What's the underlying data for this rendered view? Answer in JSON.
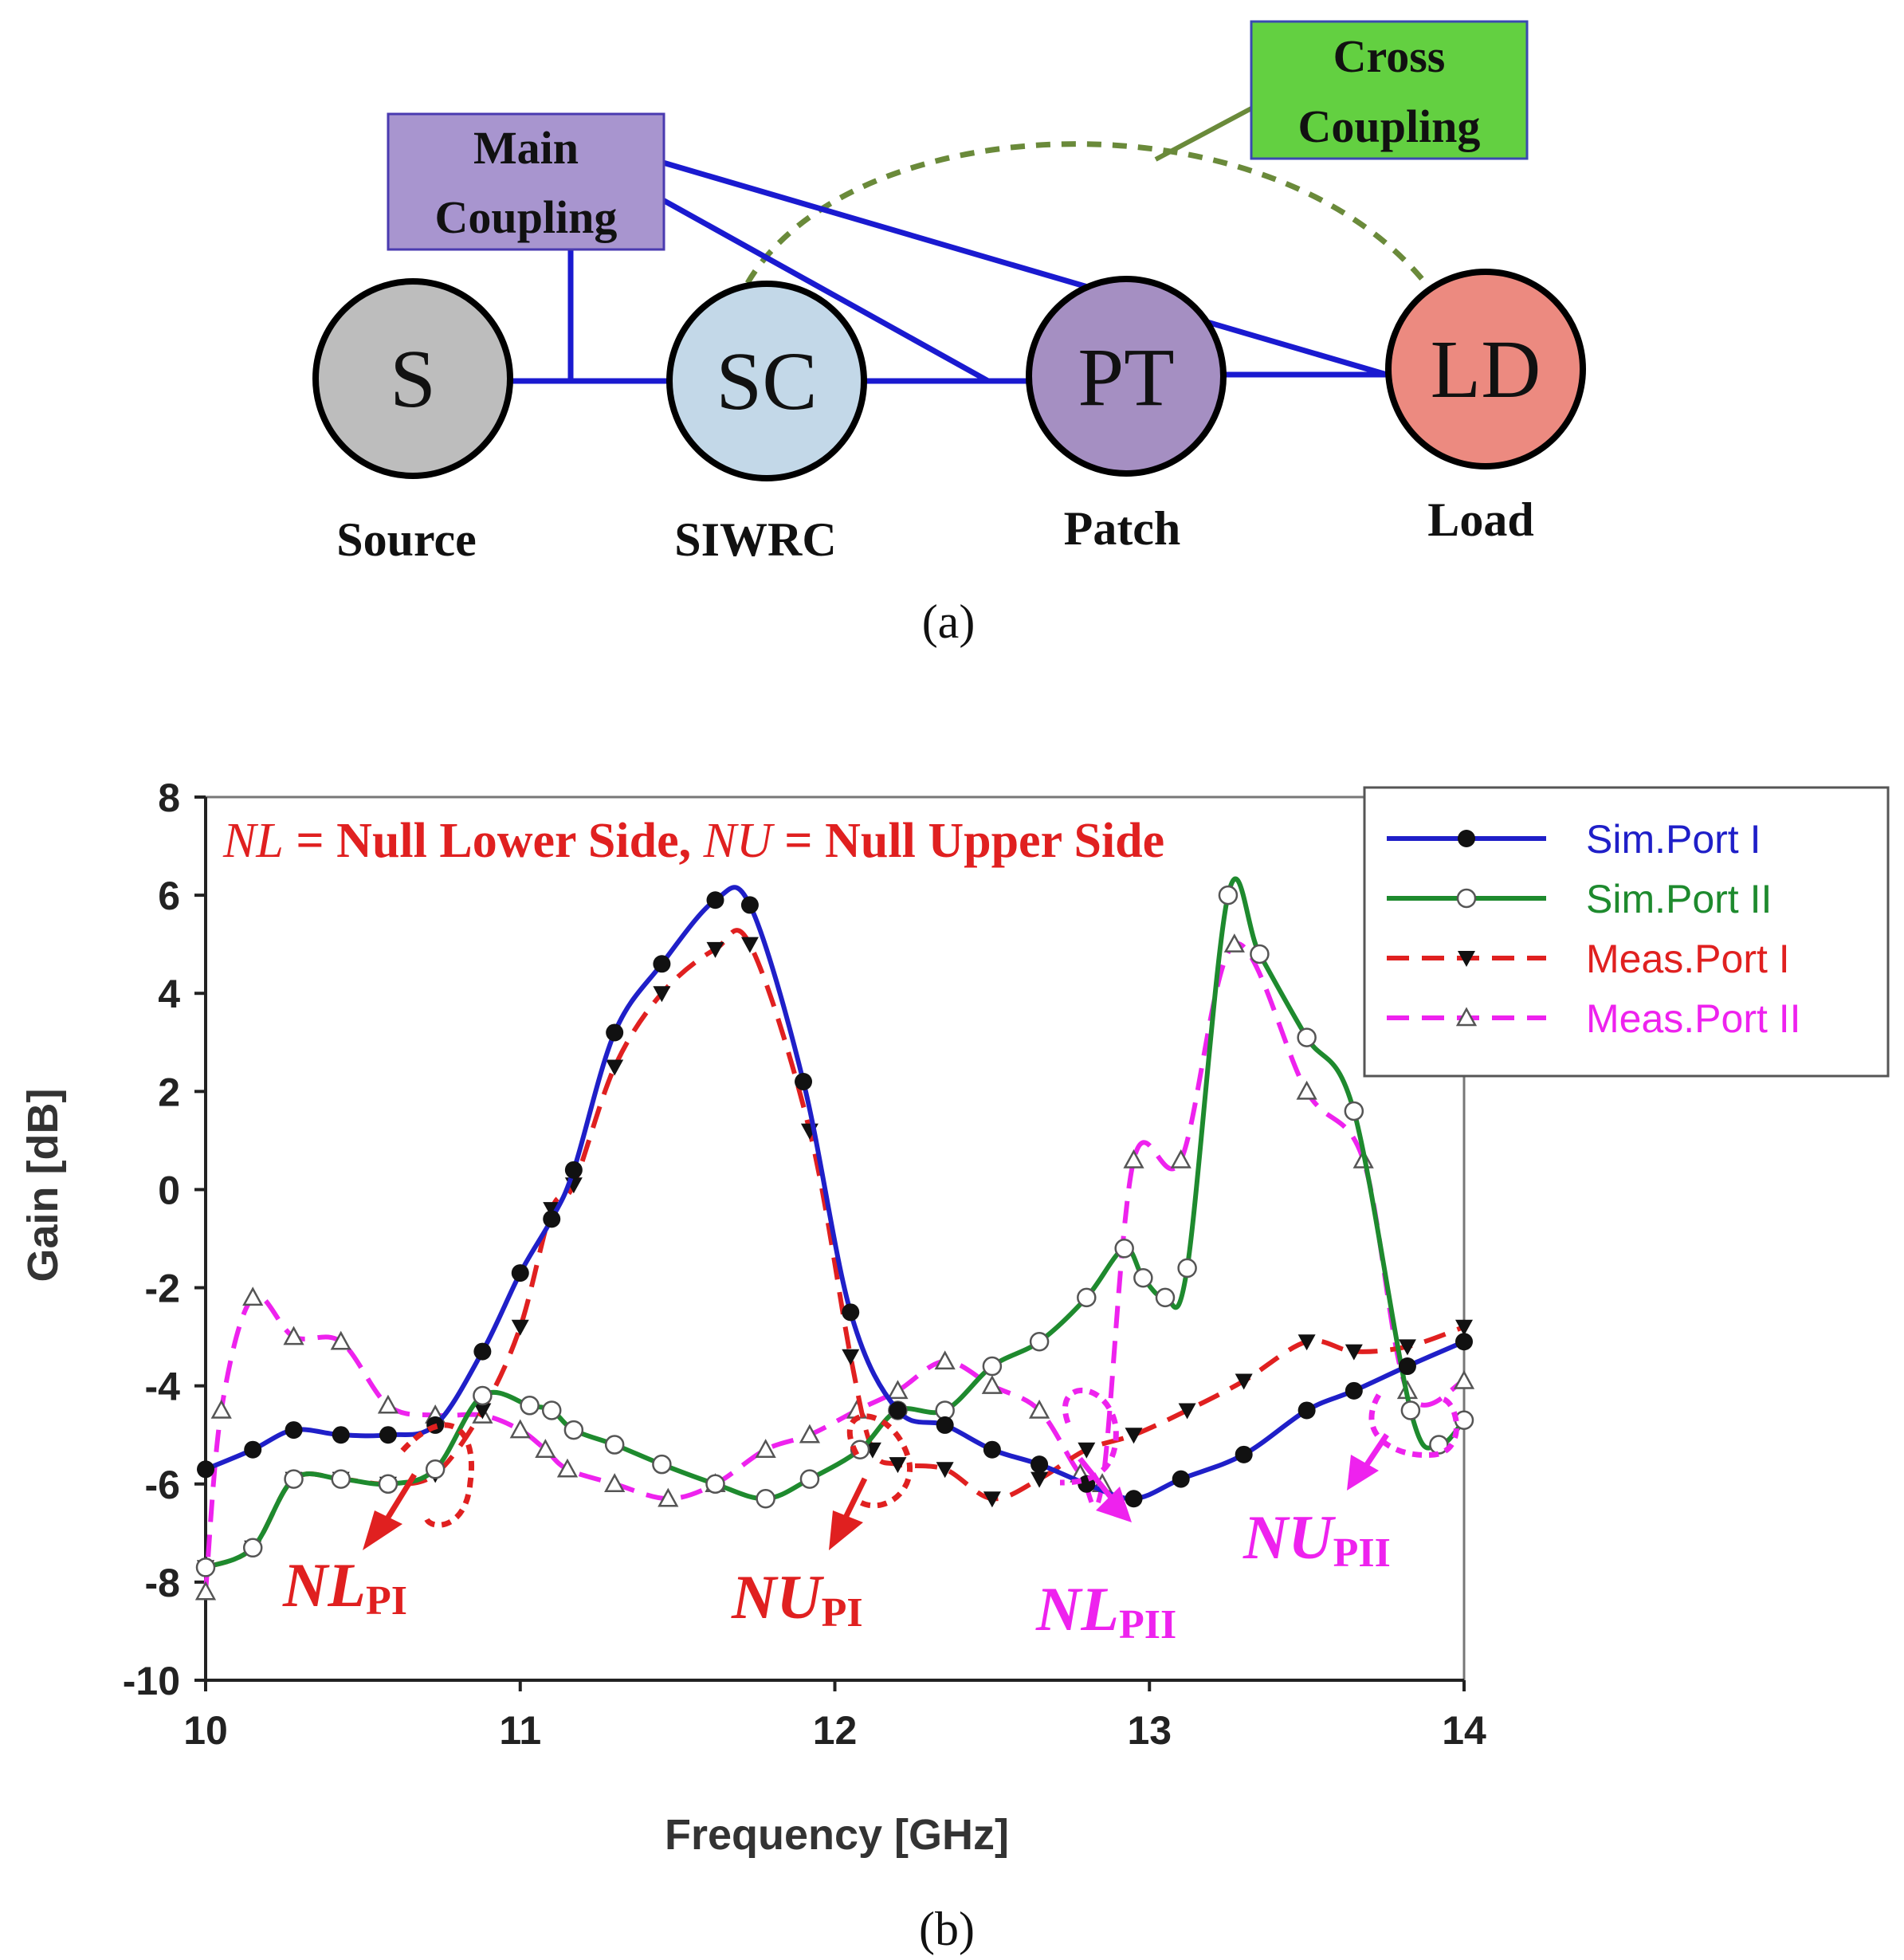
{
  "colors": {
    "sim_port_1": "#1f1fc8",
    "sim_port_2": "#1e8a2e",
    "meas_port_1": "#e02020",
    "meas_port_2": "#ee22ee",
    "coupling_line": "#1a1ad0",
    "cross_coupling": "#6a8a3a",
    "main_box_fill": "#a895cf",
    "cross_box_fill": "#63d041"
  },
  "diagram": {
    "main_coupling_label": [
      "Main",
      "Coupling"
    ],
    "cross_coupling_label": [
      "Cross",
      "Coupling"
    ],
    "nodes": [
      {
        "id": "S",
        "caption": "Source",
        "fill": "#bdbdbd"
      },
      {
        "id": "SC",
        "caption": "SIWRC",
        "fill": "#c3d8e8"
      },
      {
        "id": "PT",
        "caption": "Patch",
        "fill": "#a58fc2"
      },
      {
        "id": "LD",
        "caption": "Load",
        "fill": "#ec8a80"
      }
    ],
    "caption": "(a)"
  },
  "chart_data": {
    "type": "line",
    "title_parts": {
      "nl_symbol": "NL",
      "nl_text": " = Null Lower Side, ",
      "nu_symbol": "NU",
      "nu_text": " = Null Upper Side"
    },
    "xlabel": "Frequency [GHz]",
    "ylabel": "Gain [dB]",
    "xlim": [
      10,
      14
    ],
    "ylim": [
      -10,
      8
    ],
    "xticks": [
      10,
      11,
      12,
      13,
      14
    ],
    "yticks": [
      8,
      6,
      4,
      2,
      0,
      -2,
      -4,
      -6,
      -8,
      -10
    ],
    "legend": [
      "Sim.Port I",
      "Sim.Port II",
      "Meas.Port I",
      "Meas.Port II"
    ],
    "series": [
      {
        "name": "Sim.Port I",
        "x": [
          10,
          10.15,
          10.28,
          10.43,
          10.58,
          10.73,
          10.88,
          11.0,
          11.1,
          11.17,
          11.3,
          11.45,
          11.62,
          11.73,
          11.9,
          12.05,
          12.2,
          12.35,
          12.5,
          12.65,
          12.8,
          12.95,
          13.1,
          13.3,
          13.5,
          13.65,
          13.82,
          14.0
        ],
        "y": [
          -5.7,
          -5.3,
          -4.9,
          -5.0,
          -5.0,
          -4.8,
          -3.3,
          -1.7,
          -0.6,
          0.4,
          3.2,
          4.6,
          5.9,
          5.8,
          2.2,
          -2.5,
          -4.5,
          -4.8,
          -5.3,
          -5.6,
          -6.0,
          -6.3,
          -5.9,
          -5.4,
          -4.5,
          -4.1,
          -3.6,
          -3.1
        ]
      },
      {
        "name": "Sim.Port II",
        "x": [
          10,
          10.15,
          10.28,
          10.43,
          10.58,
          10.73,
          10.88,
          11.03,
          11.1,
          11.17,
          11.3,
          11.45,
          11.62,
          11.78,
          11.92,
          12.08,
          12.2,
          12.35,
          12.5,
          12.65,
          12.8,
          12.92,
          12.98,
          13.05,
          13.12,
          13.25,
          13.35,
          13.5,
          13.65,
          13.83,
          13.92,
          14.0
        ],
        "y": [
          -7.7,
          -7.3,
          -5.9,
          -5.9,
          -6.0,
          -5.7,
          -4.2,
          -4.4,
          -4.5,
          -4.9,
          -5.2,
          -5.6,
          -6.0,
          -6.3,
          -5.9,
          -5.3,
          -4.5,
          -4.5,
          -3.6,
          -3.1,
          -2.2,
          -1.2,
          -1.8,
          -2.2,
          -1.6,
          6.0,
          4.8,
          3.1,
          1.6,
          -4.5,
          -5.2,
          -4.7
        ]
      },
      {
        "name": "Meas.Port I",
        "x": [
          10,
          10.15,
          10.28,
          10.43,
          10.58,
          10.73,
          10.88,
          11.0,
          11.1,
          11.17,
          11.3,
          11.45,
          11.62,
          11.73,
          11.92,
          12.05,
          12.12,
          12.2,
          12.35,
          12.5,
          12.65,
          12.8,
          12.95,
          13.12,
          13.3,
          13.5,
          13.65,
          13.82,
          14.0
        ],
        "y": [
          -7.7,
          -7.3,
          -5.9,
          -5.9,
          -6.0,
          -5.8,
          -4.5,
          -2.8,
          -0.4,
          0.1,
          2.5,
          4.0,
          4.9,
          5.0,
          1.2,
          -3.4,
          -5.3,
          -5.6,
          -5.7,
          -6.3,
          -5.9,
          -5.3,
          -5.0,
          -4.5,
          -3.9,
          -3.1,
          -3.3,
          -3.2,
          -2.8
        ]
      },
      {
        "name": "Meas.Port II",
        "x": [
          10,
          10.05,
          10.15,
          10.28,
          10.43,
          10.58,
          10.73,
          10.88,
          11.0,
          11.08,
          11.15,
          11.3,
          11.47,
          11.62,
          11.78,
          11.92,
          12.07,
          12.2,
          12.35,
          12.5,
          12.65,
          12.78,
          12.85,
          12.95,
          13.1,
          13.27,
          13.5,
          13.68,
          13.82,
          14.0
        ],
        "y": [
          -8.2,
          -4.5,
          -2.2,
          -3.0,
          -3.1,
          -4.4,
          -4.6,
          -4.6,
          -4.9,
          -5.3,
          -5.7,
          -6.0,
          -6.3,
          -6.0,
          -5.3,
          -5.0,
          -4.5,
          -4.1,
          -3.5,
          -4.0,
          -4.5,
          -5.8,
          -6.0,
          0.6,
          0.6,
          5.0,
          2.0,
          0.6,
          -4.1,
          -3.9
        ]
      }
    ],
    "annotations": [
      {
        "symbol": "NL",
        "subscript": "PI",
        "color": "#e02020"
      },
      {
        "symbol": "NU",
        "subscript": "PI",
        "color": "#e02020"
      },
      {
        "symbol": "NL",
        "subscript": "PII",
        "color": "#ee22ee"
      },
      {
        "symbol": "NU",
        "subscript": "PII",
        "color": "#ee22ee"
      }
    ]
  },
  "chart_caption": "(b)"
}
